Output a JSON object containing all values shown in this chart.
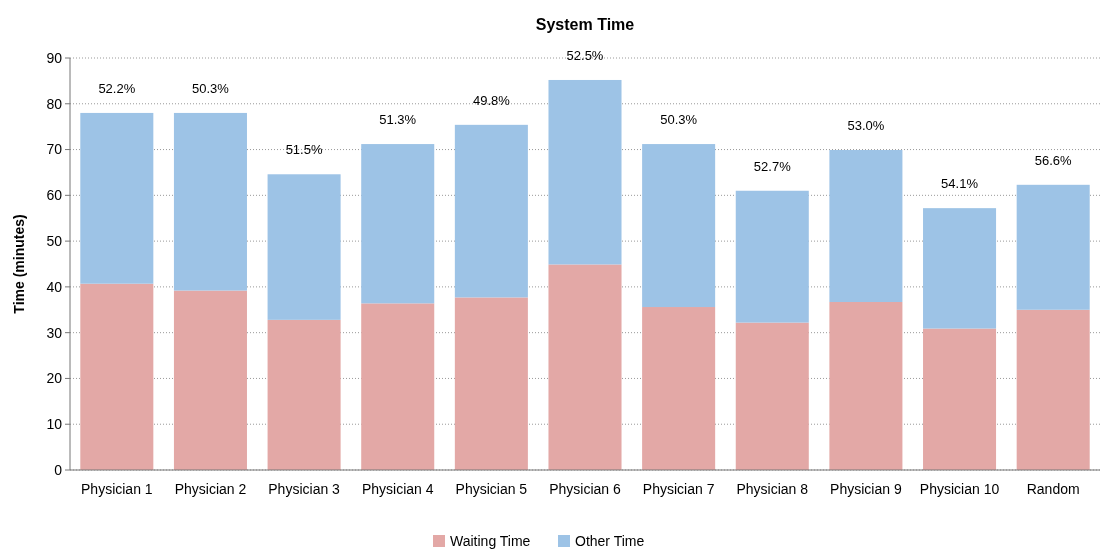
{
  "chart_data": {
    "type": "bar",
    "title": "System Time",
    "ylabel": "Time (minutes)",
    "categories": [
      "Physician 1",
      "Physician 2",
      "Physician 3",
      "Physician 4",
      "Physician 5",
      "Physician 6",
      "Physician 7",
      "Physician 8",
      "Physician 9",
      "Physician 10",
      "Random"
    ],
    "series": [
      {
        "name": "Waiting Time",
        "color": "#e3a8a6",
        "values": [
          40.7,
          39.2,
          32.8,
          36.4,
          37.7,
          44.9,
          35.6,
          32.2,
          36.7,
          30.9,
          35.0
        ]
      },
      {
        "name": "Other Time",
        "color": "#9dc3e6",
        "values": [
          37.3,
          38.8,
          31.8,
          34.8,
          37.7,
          40.3,
          35.6,
          28.8,
          33.2,
          26.3,
          27.3
        ]
      }
    ],
    "stacked": true,
    "ylim": [
      0,
      90
    ],
    "yticks": [
      0,
      10,
      20,
      30,
      40,
      50,
      60,
      70,
      80,
      90
    ],
    "grid": "y",
    "legend": "bottom",
    "annotations": [
      {
        "text": "52.2%",
        "x": "Physician 1",
        "y": 78
      },
      {
        "text": "50.3%",
        "x": "Physician 2",
        "y": 78
      },
      {
        "text": "51.5%",
        "x": "Physician 3",
        "y": 64.6
      },
      {
        "text": "51.3%",
        "x": "Physician 4",
        "y": 71.2
      },
      {
        "text": "49.8%",
        "x": "Physician 5",
        "y": 75.4
      },
      {
        "text": "52.5%",
        "x": "Physician 6",
        "y": 85.2
      },
      {
        "text": "50.3%",
        "x": "Physician 7",
        "y": 71.2
      },
      {
        "text": "52.7%",
        "x": "Physician 8",
        "y": 61.0
      },
      {
        "text": "53.0%",
        "x": "Physician 9",
        "y": 69.9
      },
      {
        "text": "54.1%",
        "x": "Physician 10",
        "y": 57.2
      },
      {
        "text": "56.6%",
        "x": "Random",
        "y": 62.3
      }
    ]
  }
}
